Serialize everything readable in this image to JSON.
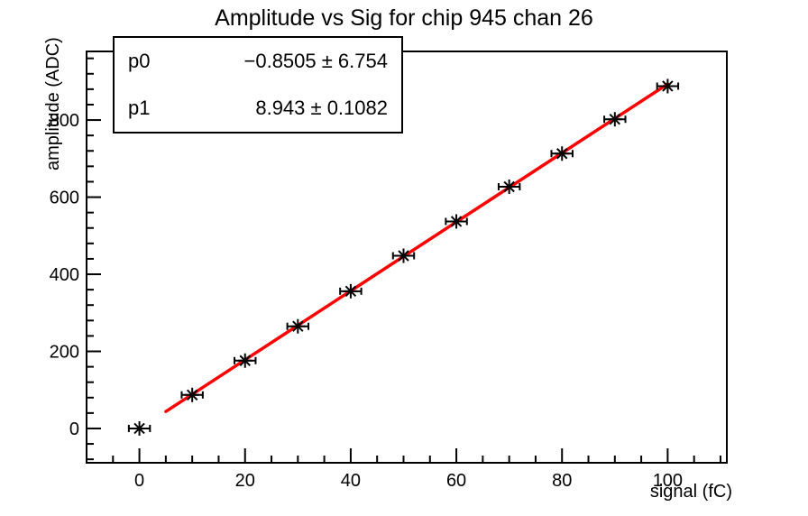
{
  "title": "Amplitude vs Sig for chip 945 chan 26",
  "axes": {
    "x_title": "signal (fC)",
    "y_title": "amplitude (ADC)"
  },
  "stats_box": {
    "rows": [
      {
        "param": "p0",
        "value": "−0.8505 ± 6.754"
      },
      {
        "param": "p1",
        "value": "8.943 ± 0.1082"
      }
    ]
  },
  "colors": {
    "background": "#ffffff",
    "frame": "#000000",
    "marker": "#000000",
    "text": "#000000",
    "fit_line": "#ff0000"
  },
  "chart_data": {
    "type": "scatter",
    "title": "Amplitude vs Sig for chip 945 chan 26",
    "xlabel": "signal (fC)",
    "ylabel": "amplitude (ADC)",
    "x": [
      0,
      10,
      20,
      30,
      40,
      50,
      60,
      70,
      80,
      90,
      100
    ],
    "y": [
      0,
      87,
      176,
      265,
      356,
      448,
      537,
      627,
      713,
      802,
      888
    ],
    "x_error": 2,
    "xlim": [
      -10,
      111.2
    ],
    "ylim": [
      -89,
      978
    ],
    "x_major_ticks": [
      0,
      20,
      40,
      60,
      80,
      100
    ],
    "y_major_ticks": [
      0,
      200,
      400,
      600,
      800
    ],
    "x_minor_step": 5,
    "y_minor_step": 40,
    "grid": false,
    "legend_position": "top-left",
    "marker_style": "asterisk",
    "fit": {
      "type": "linear",
      "p0": -0.8505,
      "p0_error": 6.754,
      "p1": 8.943,
      "p1_error": 0.1082,
      "x_range": [
        5,
        100
      ],
      "color": "#ff0000"
    }
  }
}
